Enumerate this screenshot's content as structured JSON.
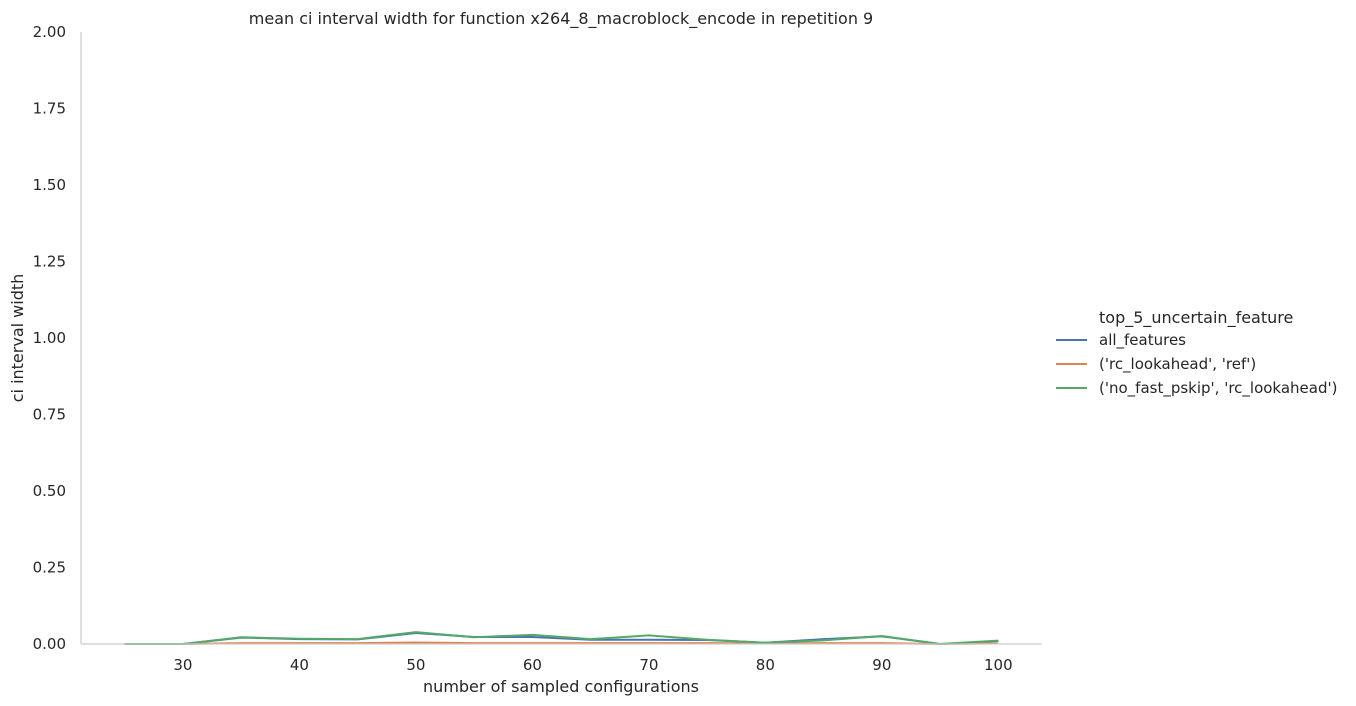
{
  "chart_data": {
    "type": "line",
    "title": "mean ci interval width for function x264_8_macroblock_encode in repetition 9",
    "xlabel": "number of sampled configurations",
    "ylabel": "ci interval width",
    "xlim": [
      21.25,
      103.75
    ],
    "ylim": [
      0,
      2
    ],
    "xticks": [
      30,
      40,
      50,
      60,
      70,
      80,
      90,
      100
    ],
    "yticks": [
      "0.00",
      "0.25",
      "0.50",
      "0.75",
      "1.00",
      "1.25",
      "1.50",
      "1.75",
      "2.00"
    ],
    "grid": false,
    "legend_title": "top_5_uncertain_feature",
    "legend_position": "right",
    "x": [
      25,
      30,
      35,
      40,
      45,
      50,
      55,
      60,
      65,
      70,
      75,
      80,
      85,
      90,
      95,
      100
    ],
    "series": [
      {
        "name": "all_features",
        "color": "#4c72b0",
        "values": [
          0,
          0,
          0.021,
          0.016,
          0.015,
          0.036,
          0.023,
          0.023,
          0.014,
          0.014,
          0.013,
          0.004,
          0.016,
          0.025,
          0,
          0.01
        ]
      },
      {
        "name": "('rc_lookahead', 'ref')",
        "color": "#dd8452",
        "values": [
          0,
          0,
          0.003,
          0.003,
          0.003,
          0.005,
          0.003,
          0.003,
          0.003,
          0.003,
          0.003,
          0.002,
          0.003,
          0.003,
          0,
          0.002
        ]
      },
      {
        "name": "('no_fast_pskip', 'rc_lookahead')",
        "color": "#55a868",
        "values": [
          0,
          0,
          0.022,
          0.017,
          0.016,
          0.039,
          0.022,
          0.03,
          0.016,
          0.028,
          0.014,
          0.004,
          0.012,
          0.026,
          0,
          0.011
        ]
      }
    ]
  }
}
